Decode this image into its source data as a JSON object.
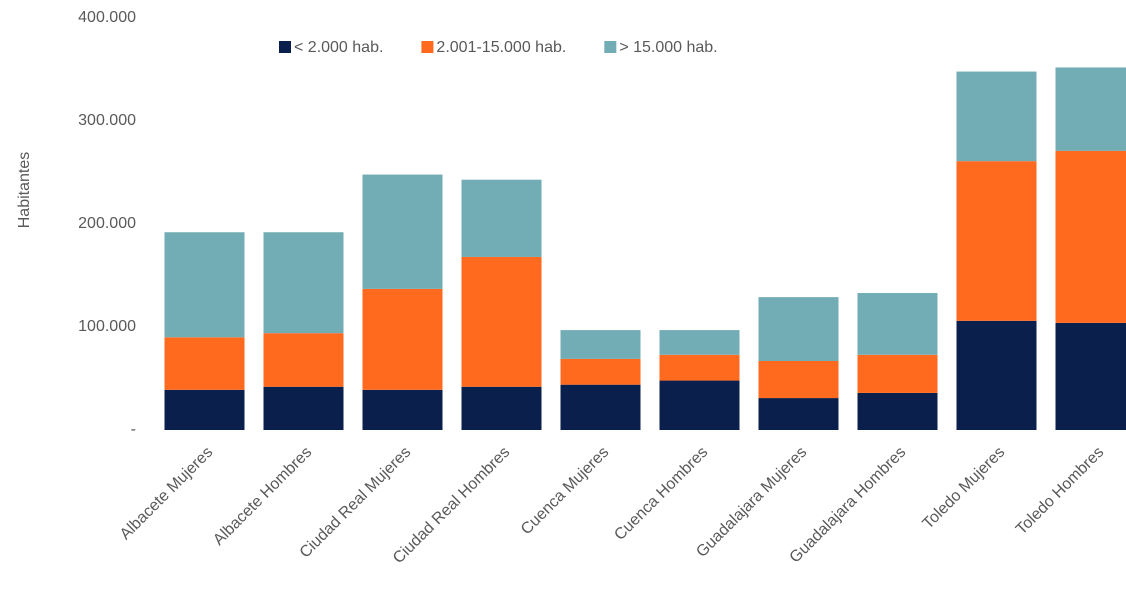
{
  "chart_data": {
    "type": "stacked_bar",
    "y_label": "Habitantes",
    "categories": [
      "Albacete Mujeres",
      "Albacete Hombres",
      "Ciudad Real Mujeres",
      "Ciudad Real Hombres",
      "Cuenca Mujeres",
      "Cuenca Hombres",
      "Guadalajara Mujeres",
      "Guadalajara Hombres",
      "Toledo Mujeres",
      "Toledo Hombres"
    ],
    "series": [
      {
        "name": "< 2.000 hab.",
        "color": "#0a1f4b",
        "values": [
          39000,
          42000,
          39000,
          42000,
          44000,
          48000,
          31000,
          36000,
          106000,
          104000
        ]
      },
      {
        "name": "2.001-15.000 hab.",
        "color": "#ff6a1f",
        "values": [
          51000,
          52000,
          98000,
          126000,
          25000,
          25000,
          36000,
          37000,
          155000,
          167000
        ]
      },
      {
        "name": "> 15.000 hab.",
        "color": "#72adb5",
        "values": [
          102000,
          98000,
          111000,
          75000,
          28000,
          24000,
          62000,
          60000,
          87000,
          81000
        ]
      }
    ],
    "ylim": [
      0,
      400000
    ],
    "yticks": [
      {
        "value": 0,
        "label": "-"
      },
      {
        "value": 100000,
        "label": "100.000"
      },
      {
        "value": 200000,
        "label": "200.000"
      },
      {
        "value": 300000,
        "label": "300.000"
      },
      {
        "value": 400000,
        "label": "400.000"
      }
    ],
    "legend": "top"
  }
}
